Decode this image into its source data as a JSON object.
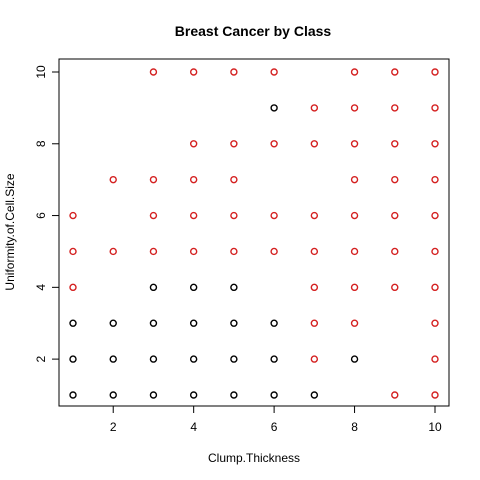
{
  "chart_data": {
    "type": "scatter",
    "title": "Breast Cancer by Class",
    "xlabel": "Clump.Thickness",
    "ylabel": "Uniformity.of.Cell.Size",
    "xlim": [
      1,
      10
    ],
    "ylim": [
      1,
      10
    ],
    "xticks": [
      2,
      4,
      6,
      8,
      10
    ],
    "yticks": [
      2,
      4,
      6,
      8,
      10
    ],
    "grid": false,
    "legend": "none",
    "marker": "open-circle",
    "series": [
      {
        "color": "#000000",
        "points": [
          [
            1,
            1
          ],
          [
            1,
            2
          ],
          [
            1,
            3
          ],
          [
            2,
            1
          ],
          [
            2,
            2
          ],
          [
            2,
            3
          ],
          [
            3,
            1
          ],
          [
            3,
            2
          ],
          [
            3,
            3
          ],
          [
            3,
            4
          ],
          [
            4,
            1
          ],
          [
            4,
            2
          ],
          [
            4,
            3
          ],
          [
            4,
            4
          ],
          [
            5,
            1
          ],
          [
            5,
            2
          ],
          [
            5,
            3
          ],
          [
            5,
            4
          ],
          [
            6,
            1
          ],
          [
            6,
            2
          ],
          [
            6,
            3
          ],
          [
            6,
            9
          ],
          [
            7,
            1
          ],
          [
            8,
            2
          ]
        ]
      },
      {
        "color": "#d42020",
        "points": [
          [
            1,
            4
          ],
          [
            1,
            5
          ],
          [
            1,
            6
          ],
          [
            2,
            5
          ],
          [
            2,
            7
          ],
          [
            3,
            5
          ],
          [
            3,
            6
          ],
          [
            3,
            7
          ],
          [
            3,
            10
          ],
          [
            4,
            5
          ],
          [
            4,
            6
          ],
          [
            4,
            7
          ],
          [
            4,
            8
          ],
          [
            4,
            10
          ],
          [
            5,
            5
          ],
          [
            5,
            6
          ],
          [
            5,
            7
          ],
          [
            5,
            8
          ],
          [
            5,
            10
          ],
          [
            6,
            5
          ],
          [
            6,
            6
          ],
          [
            6,
            8
          ],
          [
            6,
            10
          ],
          [
            7,
            2
          ],
          [
            7,
            3
          ],
          [
            7,
            4
          ],
          [
            7,
            5
          ],
          [
            7,
            6
          ],
          [
            7,
            8
          ],
          [
            7,
            9
          ],
          [
            8,
            3
          ],
          [
            8,
            4
          ],
          [
            8,
            5
          ],
          [
            8,
            6
          ],
          [
            8,
            7
          ],
          [
            8,
            8
          ],
          [
            8,
            9
          ],
          [
            8,
            10
          ],
          [
            9,
            1
          ],
          [
            9,
            4
          ],
          [
            9,
            5
          ],
          [
            9,
            6
          ],
          [
            9,
            7
          ],
          [
            9,
            8
          ],
          [
            9,
            9
          ],
          [
            9,
            10
          ],
          [
            10,
            1
          ],
          [
            10,
            2
          ],
          [
            10,
            3
          ],
          [
            10,
            4
          ],
          [
            10,
            5
          ],
          [
            10,
            6
          ],
          [
            10,
            7
          ],
          [
            10,
            8
          ],
          [
            10,
            9
          ],
          [
            10,
            10
          ]
        ]
      }
    ]
  }
}
